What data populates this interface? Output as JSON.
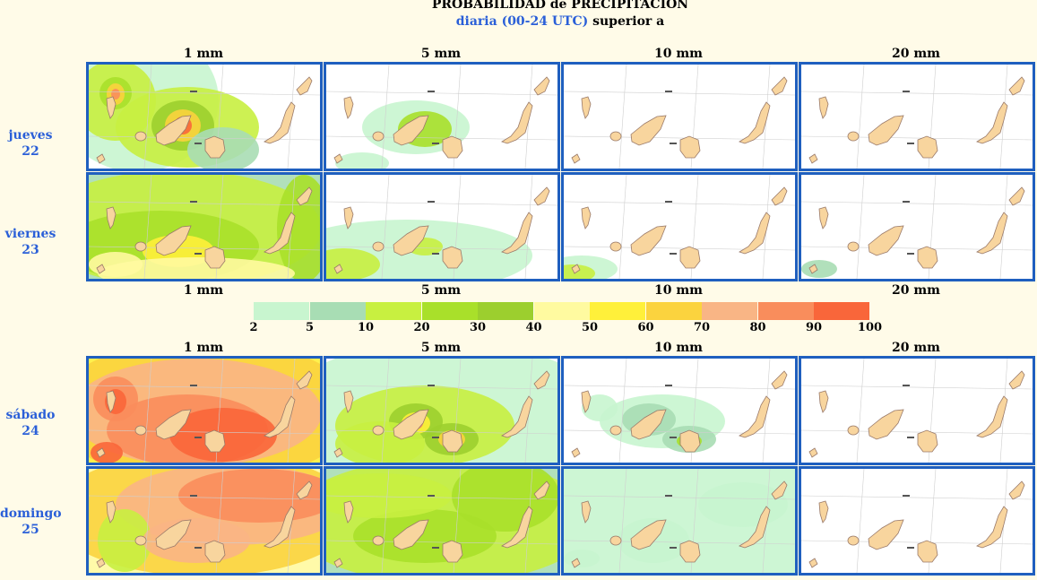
{
  "header": {
    "title": "PROBABILIDAD de PRECIPITACION",
    "subtitle_blue": "diaria (00-24 UTC)",
    "subtitle_rest": " superior a"
  },
  "columns": [
    "1 mm",
    "5 mm",
    "10 mm",
    "20 mm"
  ],
  "days": [
    {
      "name": "jueves",
      "num": "22"
    },
    {
      "name": "viernes",
      "num": "23"
    },
    {
      "name": "sábado",
      "num": "24"
    },
    {
      "name": "domingo",
      "num": "25"
    }
  ],
  "legend": {
    "labels": [
      "2",
      "5",
      "10",
      "20",
      "30",
      "40",
      "50",
      "60",
      "70",
      "80",
      "90",
      "100"
    ],
    "colors": [
      "#c8f5cf",
      "#a8ddb4",
      "#c8f040",
      "#a9e02a",
      "#9ccf2e",
      "#fffaa0",
      "#fff03a",
      "#fbd33e",
      "#f9b585",
      "#f98d5c",
      "#f9663a"
    ]
  },
  "colors": {
    "panel_border": "#1f5fbf",
    "day_label": "#2a5fd8",
    "island_fill": "#f8d59e",
    "island_stroke": "#9a7a6a",
    "background": "#fffbe8"
  }
}
